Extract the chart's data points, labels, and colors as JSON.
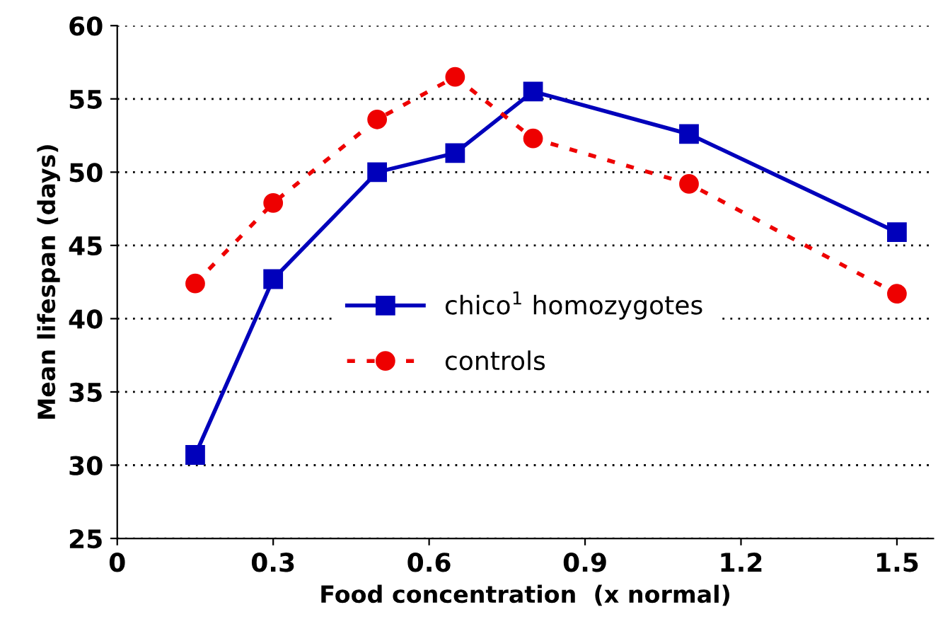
{
  "chart_data": {
    "type": "line",
    "xlabel": "Food concentration  (x normal)",
    "ylabel": "Mean lifespan (days)",
    "x": [
      0.15,
      0.3,
      0.5,
      0.65,
      0.8,
      1.1,
      1.5
    ],
    "series": [
      {
        "name": "chico$^{1}$ homozygotes",
        "color": "#0000bb",
        "marker": "square",
        "line_style": "solid",
        "values": [
          30.7,
          42.7,
          50.0,
          51.3,
          55.5,
          52.6,
          45.9
        ]
      },
      {
        "name": "controls",
        "color": "#ee0000",
        "marker": "circle",
        "line_style": "dashed",
        "values": [
          42.4,
          47.9,
          53.6,
          56.5,
          52.3,
          49.2,
          41.7
        ]
      }
    ],
    "xlim": [
      0,
      1.57
    ],
    "xticks": [
      0,
      0.3,
      0.6,
      0.9,
      1.2,
      1.5
    ],
    "ylim": [
      25,
      60
    ],
    "yticks": [
      25,
      30,
      35,
      40,
      45,
      50,
      55,
      60
    ],
    "grid": "y",
    "legend": "center"
  }
}
